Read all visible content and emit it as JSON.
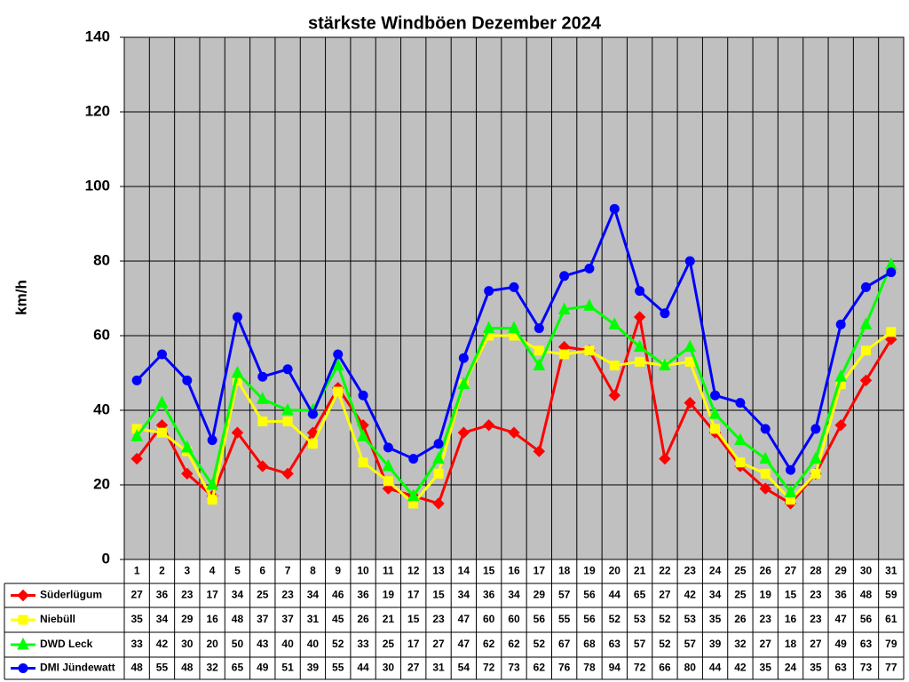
{
  "chart_data": {
    "type": "line",
    "title": "stärkste Windböen Dezember 2024",
    "y_label": "km/h",
    "categories": [
      "1",
      "2",
      "3",
      "4",
      "5",
      "6",
      "7",
      "8",
      "9",
      "10",
      "11",
      "12",
      "13",
      "14",
      "15",
      "16",
      "17",
      "18",
      "19",
      "20",
      "21",
      "22",
      "23",
      "24",
      "25",
      "26",
      "27",
      "28",
      "29",
      "30",
      "31"
    ],
    "ylim": [
      0,
      140
    ],
    "yticks": [
      0,
      20,
      40,
      60,
      80,
      100,
      120,
      140
    ],
    "grid": true,
    "series": [
      {
        "name": "Süderlügum",
        "color": "#ff0000",
        "marker": "diamond",
        "values": [
          27,
          36,
          23,
          17,
          34,
          25,
          23,
          34,
          46,
          36,
          19,
          17,
          15,
          34,
          36,
          34,
          29,
          57,
          56,
          44,
          65,
          27,
          42,
          34,
          25,
          19,
          15,
          23,
          36,
          48,
          59
        ]
      },
      {
        "name": "Niebüll",
        "color": "#ffff00",
        "marker": "square",
        "values": [
          35,
          34,
          29,
          16,
          48,
          37,
          37,
          31,
          45,
          26,
          21,
          15,
          23,
          47,
          60,
          60,
          56,
          55,
          56,
          52,
          53,
          52,
          53,
          35,
          26,
          23,
          16,
          23,
          47,
          56,
          61
        ]
      },
      {
        "name": "DWD Leck",
        "color": "#00ff00",
        "marker": "triangle",
        "values": [
          33,
          42,
          30,
          20,
          50,
          43,
          40,
          40,
          52,
          33,
          25,
          17,
          27,
          47,
          62,
          62,
          52,
          67,
          68,
          63,
          57,
          52,
          57,
          39,
          32,
          27,
          18,
          27,
          49,
          63,
          79
        ]
      },
      {
        "name": "DMI Jündewatt",
        "color": "#0000ff",
        "marker": "circle",
        "values": [
          48,
          55,
          48,
          32,
          65,
          49,
          51,
          39,
          55,
          44,
          30,
          27,
          31,
          54,
          72,
          73,
          62,
          76,
          78,
          94,
          72,
          66,
          80,
          44,
          42,
          35,
          24,
          35,
          63,
          73,
          77
        ]
      }
    ]
  }
}
